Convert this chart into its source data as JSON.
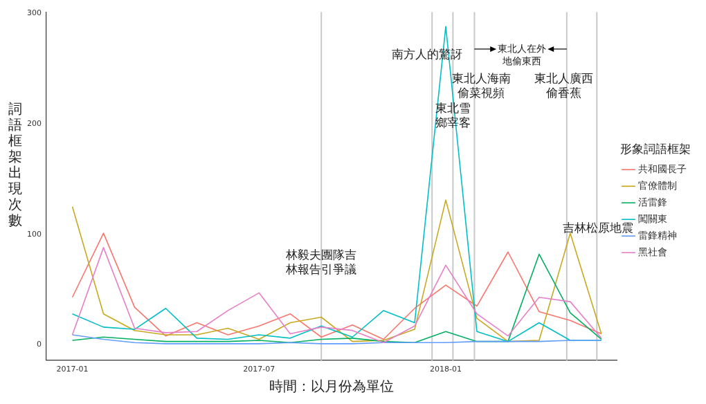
{
  "chart_data": {
    "type": "line",
    "xlabel": "時間：以月份為單位",
    "ylabel": "詞語框架出現次數",
    "legend_title": "形象詞語框架",
    "legend": "right",
    "grid": false,
    "marker": "none",
    "line_style": "solid",
    "x": [
      "2017-01",
      "2017-02",
      "2017-03",
      "2017-04",
      "2017-05",
      "2017-06",
      "2017-07",
      "2017-08",
      "2017-09",
      "2017-10",
      "2017-11",
      "2017-12",
      "2018-01",
      "2018-02",
      "2018-03",
      "2018-04",
      "2018-05",
      "2018-06"
    ],
    "xlim": [
      "2016-12-06",
      "2018-06-16"
    ],
    "xticks": [
      "2017-01",
      "2017-07",
      "2018-01"
    ],
    "ylim": [
      -14,
      301
    ],
    "yticks": [
      0,
      100,
      200,
      300
    ],
    "series": [
      {
        "name": "共和國長子",
        "color": "#f8766d",
        "values": [
          43,
          101,
          34,
          8,
          20,
          9,
          17,
          28,
          7,
          18,
          5,
          33,
          54,
          35,
          84,
          30,
          22,
          10
        ]
      },
      {
        "name": "官僚體制",
        "color": "#c8a81e",
        "values": [
          125,
          28,
          13,
          9,
          9,
          15,
          5,
          20,
          25,
          3,
          4,
          14,
          131,
          24,
          3,
          4,
          101,
          10
        ]
      },
      {
        "name": "活雷鋒",
        "color": "#00b060",
        "values": [
          4,
          7,
          5,
          3,
          3,
          3,
          4,
          2,
          5,
          6,
          3,
          2,
          12,
          3,
          3,
          82,
          29,
          5
        ]
      },
      {
        "name": "闖關東",
        "color": "#00bfc4",
        "values": [
          28,
          16,
          14,
          33,
          6,
          5,
          9,
          6,
          17,
          7,
          31,
          20,
          288,
          12,
          3,
          20,
          4,
          4
        ]
      },
      {
        "name": "雷鋒精神",
        "color": "#619cff",
        "values": [
          9,
          5,
          2,
          1,
          1,
          1,
          1,
          2,
          1,
          1,
          2,
          2,
          2,
          3,
          3,
          3,
          4,
          4
        ]
      },
      {
        "name": "黑社會",
        "color": "#e77fc8",
        "values": [
          9,
          88,
          15,
          11,
          12,
          31,
          47,
          10,
          16,
          13,
          2,
          17,
          72,
          28,
          8,
          43,
          39,
          6
        ]
      }
    ],
    "ref_lines": [
      {
        "axis": "x",
        "value": "2017-09-01",
        "color": "#c8c8c8"
      },
      {
        "axis": "x",
        "value": "2017-12-18",
        "color": "#c8c8c8"
      },
      {
        "axis": "x",
        "value": "2018-01-08",
        "color": "#c8c8c8"
      },
      {
        "axis": "x",
        "value": "2018-01-29",
        "color": "#c8c8c8"
      },
      {
        "axis": "x",
        "value": "2018-04-28",
        "color": "#c8c8c8"
      },
      {
        "axis": "x",
        "value": "2018-05-27",
        "color": "#c8c8c8"
      }
    ],
    "annotations": [
      {
        "text": "林毅夫團隊吉林報告引爭議",
        "x": "2017-09-01",
        "y": 74
      },
      "南方人的驚訝",
      {
        "text": "東北雪鄉宰客",
        "x": "2018-01-08",
        "y": 207
      },
      "東北人海南偷菜視頻",
      "東北人在外地偷東西",
      {
        "text": "東北人廣西偷香蕉",
        "x": "2018-04-25",
        "y": 234
      },
      {
        "text": "吉林松原地震",
        "x": "2018-05-28",
        "y": 105
      }
    ]
  }
}
